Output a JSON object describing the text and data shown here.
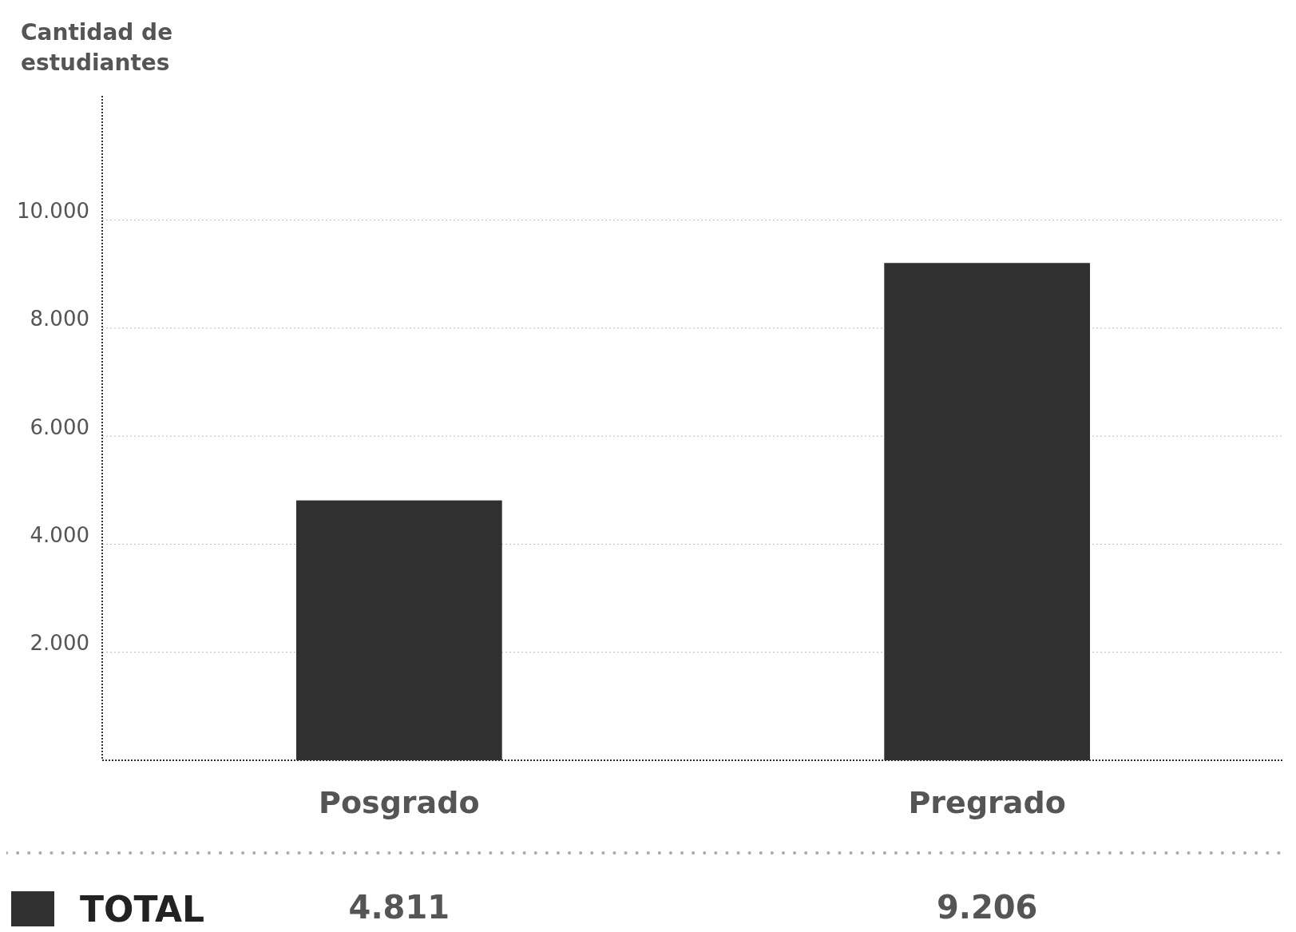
{
  "chart_data": {
    "type": "bar",
    "ylabel": "Cantidad de estudiantes",
    "categories": [
      "Posgrado",
      "Pregrado"
    ],
    "series": [
      {
        "name": "TOTAL",
        "color": "#303030",
        "values": [
          4811,
          9206
        ],
        "value_labels": [
          "4.811",
          "9.206"
        ]
      }
    ],
    "ylim": [
      0,
      12300
    ],
    "yticks": [
      {
        "value": 2000,
        "label": "2.000"
      },
      {
        "value": 4000,
        "label": "4.000"
      },
      {
        "value": 6000,
        "label": "6.000"
      },
      {
        "value": 8000,
        "label": "8.000"
      },
      {
        "value": 10000,
        "label": "10.000"
      }
    ],
    "grid": "y",
    "legend": "bottom left"
  }
}
